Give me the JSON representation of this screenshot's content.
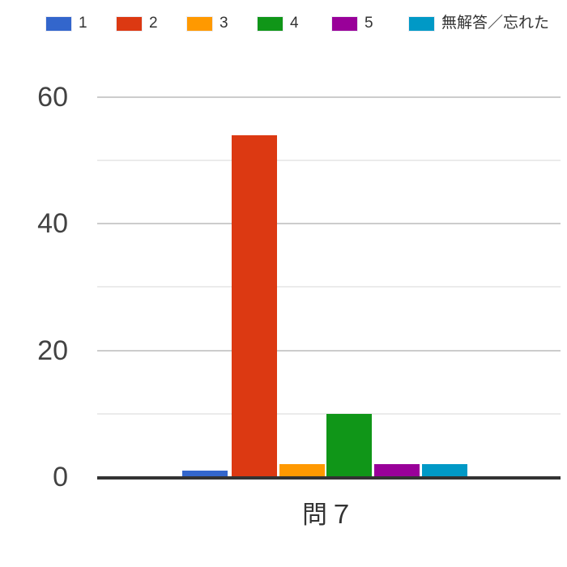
{
  "legend": {
    "items": [
      {
        "label": "1",
        "color": "#3366CC"
      },
      {
        "label": "2",
        "color": "#DC3912"
      },
      {
        "label": "3",
        "color": "#FF9900"
      },
      {
        "label": "4",
        "color": "#109618"
      },
      {
        "label": "5",
        "color": "#990099"
      },
      {
        "label": "無解答／忘れた",
        "color": "#0099C6"
      }
    ]
  },
  "axes": {
    "y_ticks": [
      {
        "value": 0,
        "label": "0"
      },
      {
        "value": 20,
        "label": "20"
      },
      {
        "value": 40,
        "label": "40"
      },
      {
        "value": 60,
        "label": "60"
      }
    ],
    "minor_gridlines": [
      10,
      30,
      50
    ],
    "x_title": "問７"
  },
  "chart_data": {
    "type": "bar",
    "title": "",
    "xlabel": "問７",
    "ylabel": "",
    "categories": [
      "問７"
    ],
    "series": [
      {
        "name": "1",
        "color": "#3366CC",
        "values": [
          1
        ]
      },
      {
        "name": "2",
        "color": "#DC3912",
        "values": [
          54
        ]
      },
      {
        "name": "3",
        "color": "#FF9900",
        "values": [
          2
        ]
      },
      {
        "name": "4",
        "color": "#109618",
        "values": [
          10
        ]
      },
      {
        "name": "5",
        "color": "#990099",
        "values": [
          2
        ]
      },
      {
        "name": "無解答／忘れた",
        "color": "#0099C6",
        "values": [
          2
        ]
      }
    ],
    "ylim": [
      0,
      60
    ],
    "yticks": [
      0,
      20,
      40,
      60
    ],
    "grid": true,
    "legend_position": "top"
  }
}
